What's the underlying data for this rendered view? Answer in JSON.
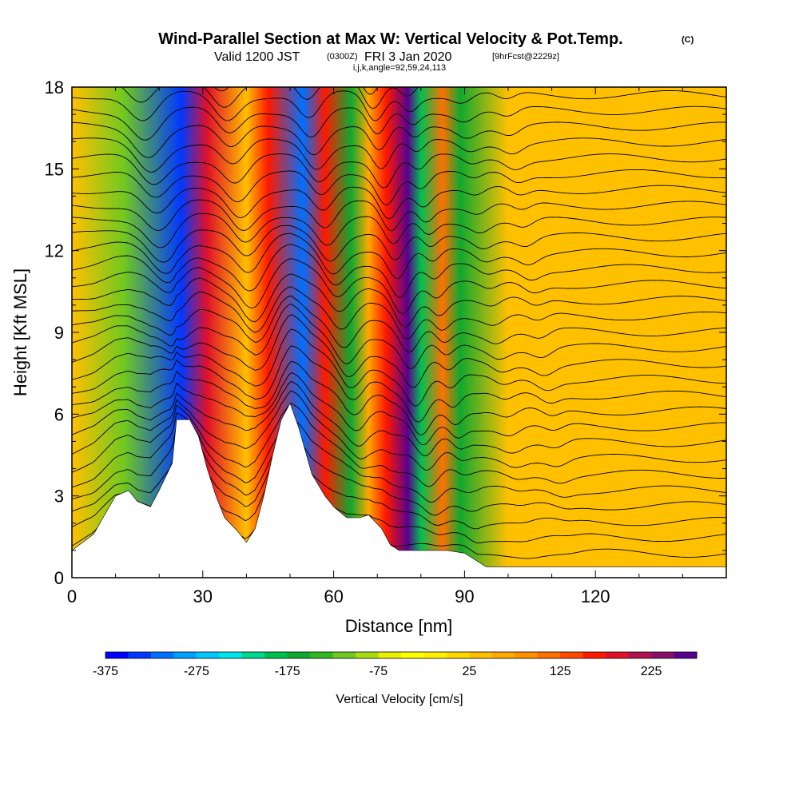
{
  "header": {
    "title": "Wind-Parallel Section at Max W: Vertical Velocity & Pot.Temp.",
    "title_mark": "(C)",
    "valid_prefix": "Valid 1200 JST",
    "valid_utc": "(0300Z)",
    "valid_date": "FRI 3 Jan 2020",
    "forecast": "[9hrFcst@2229z]",
    "indices": "i,j,k,angle=92,59,24,113"
  },
  "chart_data": {
    "type": "heatmap",
    "xlabel": "Distance [nm]",
    "ylabel": "Height [Kft MSL]",
    "xlim": [
      0,
      150
    ],
    "ylim": [
      0,
      18
    ],
    "x_ticks": [
      "0",
      "30",
      "60",
      "90",
      "120"
    ],
    "x_tick_values": [
      0,
      30,
      60,
      90,
      120
    ],
    "y_ticks": [
      "0",
      "3",
      "6",
      "9",
      "12",
      "15",
      "18"
    ],
    "y_tick_values": [
      0,
      3,
      6,
      9,
      12,
      15,
      18
    ],
    "colorbar": {
      "label": "Vertical Velocity [cm/s]",
      "min": -375,
      "max": 275,
      "step": 25,
      "tick_labels": [
        "-375",
        "-275",
        "-175",
        "-75",
        "25",
        "125",
        "225"
      ],
      "tick_values": [
        -375,
        -275,
        -175,
        -75,
        25,
        125,
        225
      ],
      "colors": [
        "#0000ff",
        "#0038ff",
        "#0070ff",
        "#00a0ff",
        "#00c8ff",
        "#00e6ee",
        "#00d890",
        "#00c050",
        "#10a830",
        "#30b820",
        "#70c820",
        "#a8dc10",
        "#e8f000",
        "#ffff00",
        "#fff000",
        "#ffd800",
        "#ffc000",
        "#ffa800",
        "#ff9000",
        "#ff7000",
        "#ff4800",
        "#ff1800",
        "#e0102a",
        "#b01050",
        "#881068",
        "#5a0090"
      ]
    },
    "velocity_bands": [
      {
        "x": 12,
        "w": -120
      },
      {
        "x": 25,
        "w": -330
      },
      {
        "x": 31,
        "w": 175
      },
      {
        "x": 40,
        "w": 40
      },
      {
        "x": 45,
        "w": 150
      },
      {
        "x": 53,
        "w": -310
      },
      {
        "x": 58,
        "w": 160
      },
      {
        "x": 64,
        "w": -175
      },
      {
        "x": 68,
        "w": 55
      },
      {
        "x": 72,
        "w": 155
      },
      {
        "x": 77,
        "w": 275
      },
      {
        "x": 80,
        "w": -195
      },
      {
        "x": 85,
        "w": 120
      },
      {
        "x": 89,
        "w": -160
      },
      {
        "x": 100,
        "w": 45
      },
      {
        "x": 108,
        "w": 40
      },
      {
        "x": 122,
        "w": 45
      },
      {
        "x": 132,
        "w": 35
      }
    ],
    "terrain": [
      [
        0,
        1.0
      ],
      [
        5,
        1.6
      ],
      [
        10,
        3.0
      ],
      [
        13,
        3.2
      ],
      [
        15,
        2.8
      ],
      [
        18,
        2.6
      ],
      [
        20,
        3.2
      ],
      [
        23,
        4.2
      ],
      [
        24,
        5.8
      ],
      [
        27,
        5.8
      ],
      [
        29,
        5.2
      ],
      [
        31,
        4.0
      ],
      [
        33,
        3.0
      ],
      [
        35,
        2.2
      ],
      [
        38,
        1.7
      ],
      [
        40,
        1.3
      ],
      [
        42,
        1.8
      ],
      [
        44,
        3.0
      ],
      [
        46,
        4.5
      ],
      [
        48,
        5.8
      ],
      [
        50,
        6.4
      ],
      [
        52,
        5.5
      ],
      [
        55,
        3.8
      ],
      [
        58,
        3.0
      ],
      [
        60,
        2.6
      ],
      [
        63,
        2.2
      ],
      [
        66,
        2.2
      ],
      [
        68,
        2.3
      ],
      [
        71,
        1.8
      ],
      [
        73,
        1.2
      ],
      [
        75,
        1.0
      ],
      [
        86,
        1.0
      ],
      [
        90,
        0.9
      ],
      [
        95,
        0.4
      ],
      [
        150,
        0.4
      ]
    ]
  }
}
